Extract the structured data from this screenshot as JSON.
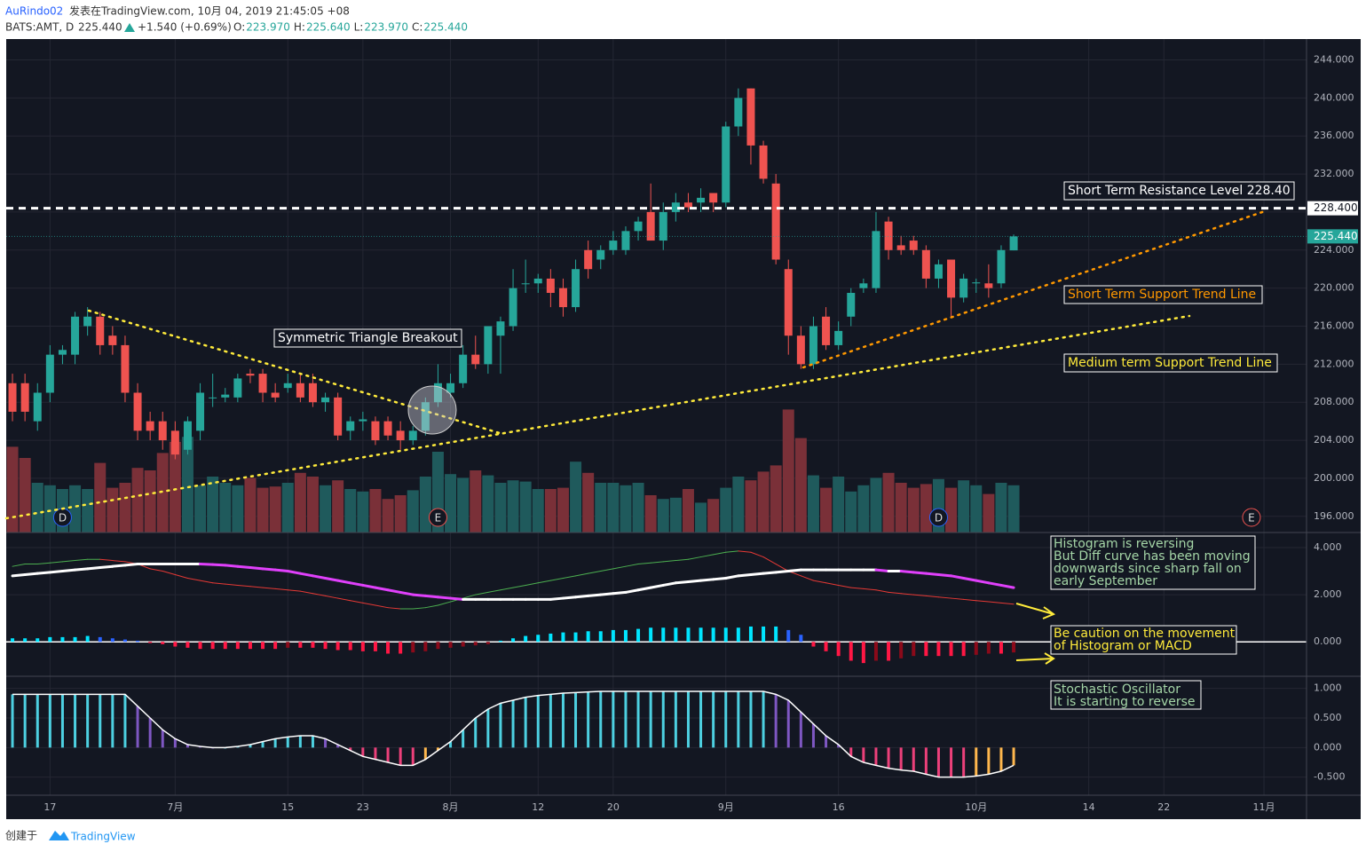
{
  "header": {
    "author": "AuRindo02",
    "published": "发表在TradingView.com, 10月 04, 2019 21:45:05 +08",
    "symbol": "BATS:AMT, D",
    "price": "225.440",
    "change": "+1.540 (+0.69%)",
    "ohlc": [
      {
        "label": "O:",
        "value": "223.970"
      },
      {
        "label": "H:",
        "value": "225.640"
      },
      {
        "label": "L:",
        "value": "223.970"
      },
      {
        "label": "C:",
        "value": "225.440"
      }
    ]
  },
  "footer": {
    "created": "创建于",
    "brand": "TradingView"
  },
  "chart_data": {
    "type": "candlestick",
    "up_color": "#26a69a",
    "down_color": "#ef5350",
    "up_volume_color": "#1f5a5c",
    "down_volume_color": "#7a3038",
    "xlim": [
      -0.5,
      103.4
    ],
    "xticks": [
      {
        "value": 3,
        "label": "17"
      },
      {
        "value": 13,
        "label": "7月"
      },
      {
        "value": 22,
        "label": "15"
      },
      {
        "value": 28,
        "label": "23"
      },
      {
        "value": 35,
        "label": "8月"
      },
      {
        "value": 42,
        "label": "12"
      },
      {
        "value": 48,
        "label": "20"
      },
      {
        "value": 57,
        "label": "9月"
      },
      {
        "value": 66,
        "label": "16"
      },
      {
        "value": 77,
        "label": "10月"
      },
      {
        "value": 86,
        "label": "14"
      },
      {
        "value": 92,
        "label": "22"
      },
      {
        "value": 100,
        "label": "11月"
      }
    ],
    "ylim": [
      194.3,
      246.1
    ],
    "yticks": [
      {
        "value": 196,
        "label": "196.000"
      },
      {
        "value": 200,
        "label": "200.000"
      },
      {
        "value": 204,
        "label": "204.000"
      },
      {
        "value": 208,
        "label": "208.000"
      },
      {
        "value": 212,
        "label": "212.000"
      },
      {
        "value": 216,
        "label": "216.000"
      },
      {
        "value": 220,
        "label": "220.000"
      },
      {
        "value": 224,
        "label": "224.000"
      },
      {
        "value": 228,
        "label": "228.000"
      },
      {
        "value": 232,
        "label": "232.000"
      },
      {
        "value": 236,
        "label": "236.000"
      },
      {
        "value": 240,
        "label": "240.000"
      },
      {
        "value": 244,
        "label": "244.000"
      }
    ],
    "grid": true,
    "candles": [
      [
        210,
        211,
        206,
        207
      ],
      [
        210,
        211,
        206,
        207
      ],
      [
        206,
        210,
        205,
        209
      ],
      [
        209,
        214,
        208,
        213
      ],
      [
        213,
        214,
        212,
        213.5
      ],
      [
        213,
        217.5,
        212,
        217
      ],
      [
        216,
        218,
        215,
        217
      ],
      [
        217,
        217.5,
        213,
        214
      ],
      [
        215,
        216,
        213,
        214
      ],
      [
        214,
        215,
        208,
        209
      ],
      [
        209,
        210,
        204,
        205
      ],
      [
        206,
        207,
        204,
        205
      ],
      [
        206,
        207,
        203,
        204
      ],
      [
        205,
        206,
        202,
        202.5
      ],
      [
        203,
        206.5,
        202.5,
        206
      ],
      [
        205,
        210,
        204,
        209
      ],
      [
        208.5,
        211,
        207.5,
        208.5
      ],
      [
        208.5,
        209.5,
        208,
        208.8
      ],
      [
        208.5,
        211,
        208,
        210.5
      ],
      [
        211,
        211.5,
        210,
        210.8
      ],
      [
        211,
        211.5,
        208,
        209
      ],
      [
        209,
        210,
        208,
        208.5
      ],
      [
        209.5,
        211,
        209,
        210
      ],
      [
        210,
        211,
        208,
        208.5
      ],
      [
        210,
        211,
        207.5,
        208
      ],
      [
        208,
        209,
        207,
        208.5
      ],
      [
        208.5,
        209,
        204,
        204.5
      ],
      [
        205,
        206.5,
        204,
        206
      ],
      [
        206,
        207,
        205,
        206.2
      ],
      [
        206,
        206.5,
        203.5,
        204
      ],
      [
        206,
        206.5,
        204,
        204.5
      ],
      [
        205,
        206,
        203,
        204
      ],
      [
        204,
        205.5,
        203.5,
        205
      ],
      [
        205,
        208.5,
        204.5,
        208
      ],
      [
        208,
        212,
        207.5,
        210
      ],
      [
        209,
        211,
        208.5,
        210
      ],
      [
        210,
        214,
        209.5,
        213
      ],
      [
        213,
        215,
        211.5,
        212
      ],
      [
        212,
        216,
        211,
        216
      ],
      [
        215,
        217,
        211,
        216.5
      ],
      [
        216,
        222,
        215.5,
        220
      ],
      [
        220.5,
        223,
        219.5,
        220.5
      ],
      [
        220.5,
        221.5,
        219.5,
        221
      ],
      [
        221,
        222,
        218,
        219.5
      ],
      [
        220,
        221,
        217,
        218
      ],
      [
        218,
        223,
        217.5,
        222
      ],
      [
        224,
        225,
        221,
        222
      ],
      [
        223,
        224.5,
        222,
        224
      ],
      [
        224,
        226,
        223.5,
        225
      ],
      [
        224,
        226.5,
        223.5,
        226
      ],
      [
        226,
        227.5,
        225,
        227
      ],
      [
        228,
        231,
        225,
        225
      ],
      [
        225,
        229,
        224,
        228
      ],
      [
        228,
        230,
        227,
        229
      ],
      [
        229,
        230,
        228,
        228.5
      ],
      [
        229,
        230.5,
        228,
        229.5
      ],
      [
        230,
        230,
        228,
        229
      ],
      [
        229,
        237.5,
        228.5,
        237
      ],
      [
        237,
        241,
        236,
        240
      ],
      [
        241,
        241,
        233,
        235
      ],
      [
        235,
        235.5,
        231,
        231.5
      ],
      [
        231,
        232,
        222.5,
        223
      ],
      [
        222,
        223,
        213,
        215
      ],
      [
        215,
        216,
        211.5,
        212
      ],
      [
        212,
        217,
        211.5,
        216
      ],
      [
        217,
        218,
        213.5,
        214
      ],
      [
        214,
        216.5,
        213.5,
        215.5
      ],
      [
        217,
        220,
        216,
        219.5
      ],
      [
        220,
        221,
        219.5,
        220.5
      ],
      [
        220,
        228,
        219.5,
        226
      ],
      [
        227,
        227.5,
        223,
        224
      ],
      [
        224.5,
        225.5,
        223.5,
        224
      ],
      [
        225,
        225.5,
        223.5,
        224
      ],
      [
        224,
        224.5,
        220,
        221
      ],
      [
        221,
        223,
        220,
        222.5
      ],
      [
        223,
        223,
        217,
        219
      ],
      [
        219,
        221.5,
        218.5,
        221
      ],
      [
        220.5,
        221,
        219.5,
        220.6
      ],
      [
        220.5,
        222.5,
        219,
        220
      ],
      [
        220.5,
        224.5,
        220,
        224
      ],
      [
        223.97,
        225.64,
        223.97,
        225.44
      ]
    ],
    "volume": [
      69,
      60,
      40,
      38,
      35,
      38,
      35,
      56,
      36,
      40,
      52,
      50,
      64,
      73,
      77,
      38,
      45,
      40,
      38,
      44,
      36,
      37,
      40,
      48,
      45,
      38,
      42,
      35,
      33,
      35,
      27,
      30,
      34,
      45,
      65,
      47,
      44,
      50,
      46,
      40,
      42,
      41,
      35,
      35,
      36,
      57,
      48,
      40,
      40,
      38,
      40,
      30,
      27,
      28,
      35,
      24,
      27,
      36,
      45,
      42,
      49,
      54,
      99,
      76,
      46,
      36,
      45,
      33,
      38,
      44,
      48,
      40,
      36,
      39,
      43,
      36,
      42,
      38,
      31,
      40,
      38
    ],
    "resistance": {
      "value": 228.4,
      "label": "228.400",
      "color": "#ffffff"
    },
    "last_price": {
      "value": 225.44,
      "label": "225.440",
      "color": "#26a69a"
    },
    "events": [
      {
        "label": "D",
        "value": 4,
        "color": "#2962ff"
      },
      {
        "label": "E",
        "value": 34,
        "color": "#ef5350"
      },
      {
        "label": "D",
        "value": 74,
        "color": "#2962ff"
      },
      {
        "label": "E",
        "value": 99,
        "color": "#ef5350"
      }
    ],
    "annotations": {
      "triangle": "Symmetric Triangle Breakout",
      "resistance": "Short Term Resistance Level 228.40",
      "short_support": "Short Term Support Trend Line",
      "medium_support": "Medium term Support Trend Line",
      "histogram": [
        "Histogram is reversing",
        "But Diff curve has been moving",
        "downwards since sharp fall on",
        "early September"
      ],
      "caution": [
        "Be caution on the movement",
        "of Histogram or MACD"
      ],
      "stochastic": [
        "Stochastic Oscillator",
        "It is starting to reverse"
      ]
    },
    "macd": {
      "ylim": [
        -1.46,
        4.6
      ],
      "yticks": [
        {
          "value": 0,
          "label": "0.000"
        },
        {
          "value": 2,
          "label": "2.000"
        },
        {
          "value": 4,
          "label": "4.000"
        }
      ],
      "line": [
        2.8,
        2.85,
        2.9,
        2.95,
        3.0,
        3.05,
        3.1,
        3.15,
        3.2,
        3.25,
        3.3,
        3.3,
        3.3,
        3.3,
        3.3,
        3.3,
        3.28,
        3.25,
        3.2,
        3.15,
        3.1,
        3.05,
        3.0,
        2.9,
        2.8,
        2.7,
        2.6,
        2.5,
        2.4,
        2.3,
        2.2,
        2.1,
        2.0,
        1.95,
        1.9,
        1.85,
        1.8,
        1.8,
        1.8,
        1.8,
        1.8,
        1.8,
        1.8,
        1.8,
        1.85,
        1.9,
        1.95,
        2.0,
        2.05,
        2.1,
        2.2,
        2.3,
        2.4,
        2.5,
        2.55,
        2.6,
        2.65,
        2.7,
        2.8,
        2.85,
        2.9,
        2.95,
        3.0,
        3.05,
        3.05,
        3.05,
        3.05,
        3.05,
        3.05,
        3.05,
        3.0,
        3.0,
        2.95,
        2.9,
        2.85,
        2.8,
        2.7,
        2.6,
        2.5,
        2.4,
        2.3
      ],
      "rising_color": "#ffffff",
      "falling_color": "#e040fb",
      "diff": [
        3.2,
        3.3,
        3.3,
        3.35,
        3.4,
        3.45,
        3.5,
        3.5,
        3.45,
        3.4,
        3.3,
        3.1,
        3.0,
        2.85,
        2.7,
        2.6,
        2.5,
        2.45,
        2.4,
        2.35,
        2.3,
        2.25,
        2.2,
        2.15,
        2.05,
        1.95,
        1.85,
        1.75,
        1.65,
        1.55,
        1.45,
        1.4,
        1.4,
        1.45,
        1.55,
        1.7,
        1.85,
        2.0,
        2.1,
        2.2,
        2.3,
        2.4,
        2.5,
        2.6,
        2.7,
        2.8,
        2.9,
        3.0,
        3.1,
        3.2,
        3.3,
        3.35,
        3.4,
        3.45,
        3.5,
        3.6,
        3.7,
        3.8,
        3.85,
        3.8,
        3.6,
        3.3,
        3.0,
        2.8,
        2.6,
        2.5,
        2.4,
        2.3,
        2.25,
        2.2,
        2.1,
        2.05,
        2.0,
        1.95,
        1.9,
        1.85,
        1.8,
        1.75,
        1.7,
        1.65,
        1.6
      ],
      "diff_up_color": "#4caf50",
      "diff_down_color": "#e53935",
      "histogram": [
        0.15,
        0.15,
        0.15,
        0.2,
        0.2,
        0.2,
        0.25,
        0.2,
        0.15,
        0.1,
        0.05,
        -0.05,
        -0.1,
        -0.2,
        -0.25,
        -0.3,
        -0.3,
        -0.3,
        -0.3,
        -0.3,
        -0.3,
        -0.3,
        -0.25,
        -0.25,
        -0.25,
        -0.3,
        -0.35,
        -0.35,
        -0.4,
        -0.4,
        -0.5,
        -0.5,
        -0.45,
        -0.4,
        -0.3,
        -0.25,
        -0.2,
        -0.15,
        -0.1,
        0.05,
        0.15,
        0.25,
        0.3,
        0.35,
        0.4,
        0.4,
        0.45,
        0.45,
        0.5,
        0.5,
        0.55,
        0.6,
        0.6,
        0.6,
        0.6,
        0.6,
        0.6,
        0.6,
        0.6,
        0.65,
        0.65,
        0.65,
        0.5,
        0.3,
        -0.2,
        -0.4,
        -0.6,
        -0.8,
        -0.9,
        -0.8,
        -0.8,
        -0.7,
        -0.6,
        -0.6,
        -0.6,
        -0.6,
        -0.6,
        -0.55,
        -0.5,
        -0.5,
        -0.45
      ],
      "hist_colors": [
        "#00e5ff",
        "#2962ff",
        "#ff1744",
        "#8b0a1a"
      ]
    },
    "stochastic": {
      "ylim": [
        -0.79,
        1.19
      ],
      "yticks": [
        {
          "value": 1,
          "label": "1.000"
        },
        {
          "value": 0.5,
          "label": "0.500"
        },
        {
          "value": 0,
          "label": "0.000"
        },
        {
          "value": -0.5,
          "label": "-0.500"
        }
      ],
      "values": [
        0.9,
        0.9,
        0.9,
        0.9,
        0.9,
        0.9,
        0.9,
        0.9,
        0.9,
        0.9,
        0.7,
        0.5,
        0.3,
        0.15,
        0.05,
        0.02,
        0.0,
        0.0,
        0.02,
        0.05,
        0.1,
        0.15,
        0.18,
        0.2,
        0.2,
        0.15,
        0.05,
        -0.05,
        -0.15,
        -0.2,
        -0.25,
        -0.3,
        -0.3,
        -0.2,
        -0.05,
        0.1,
        0.3,
        0.5,
        0.65,
        0.75,
        0.8,
        0.85,
        0.88,
        0.9,
        0.92,
        0.93,
        0.94,
        0.95,
        0.95,
        0.95,
        0.95,
        0.95,
        0.95,
        0.95,
        0.95,
        0.95,
        0.95,
        0.95,
        0.95,
        0.95,
        0.95,
        0.9,
        0.8,
        0.6,
        0.4,
        0.2,
        0.05,
        -0.15,
        -0.25,
        -0.3,
        -0.35,
        -0.38,
        -0.4,
        -0.45,
        -0.5,
        -0.5,
        -0.5,
        -0.48,
        -0.45,
        -0.4,
        -0.3
      ],
      "bar_colors": [
        "#4dd0e1",
        "#7e57c2",
        "#ec407a",
        "#ffb74d"
      ],
      "line_color": "#ffffff"
    }
  }
}
